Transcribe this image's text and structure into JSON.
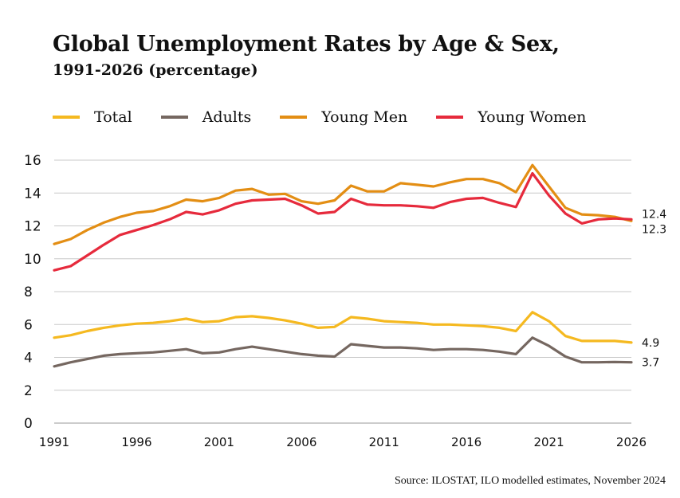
{
  "chart_data": {
    "type": "line",
    "title": "Global Unemployment Rates by Age & Sex,",
    "subtitle": "1991-2026 (percentage)",
    "xlabel": "",
    "ylabel": "",
    "x": [
      1991,
      1992,
      1993,
      1994,
      1995,
      1996,
      1997,
      1998,
      1999,
      2000,
      2001,
      2002,
      2003,
      2004,
      2005,
      2006,
      2007,
      2008,
      2009,
      2010,
      2011,
      2012,
      2013,
      2014,
      2015,
      2016,
      2017,
      2018,
      2019,
      2020,
      2021,
      2022,
      2023,
      2024,
      2025,
      2026
    ],
    "xlim": [
      1991,
      2026
    ],
    "ylim": [
      0,
      16
    ],
    "xticks": [
      "1991",
      "1996",
      "2001",
      "2006",
      "2011",
      "2016",
      "2021",
      "2026"
    ],
    "yticks": [
      "0",
      "2",
      "4",
      "6",
      "8",
      "10",
      "12",
      "14",
      "16"
    ],
    "grid": "horizontal",
    "legend_position": "top",
    "series": [
      {
        "name": "Total",
        "color": "#F5B920",
        "end_label": "4.9",
        "values": [
          5.2,
          5.35,
          5.6,
          5.8,
          5.95,
          6.05,
          6.1,
          6.2,
          6.35,
          6.15,
          6.2,
          6.45,
          6.5,
          6.4,
          6.25,
          6.05,
          5.8,
          5.85,
          6.45,
          6.35,
          6.2,
          6.15,
          6.1,
          6.0,
          6.0,
          5.95,
          5.9,
          5.8,
          5.6,
          6.75,
          6.2,
          5.3,
          5.0,
          5.0,
          5.0,
          4.9
        ]
      },
      {
        "name": "Adults",
        "color": "#756760",
        "end_label": "3.7",
        "values": [
          3.45,
          3.7,
          3.9,
          4.1,
          4.2,
          4.25,
          4.3,
          4.4,
          4.5,
          4.25,
          4.3,
          4.5,
          4.65,
          4.5,
          4.35,
          4.2,
          4.1,
          4.05,
          4.8,
          4.7,
          4.6,
          4.6,
          4.55,
          4.45,
          4.5,
          4.5,
          4.45,
          4.35,
          4.2,
          5.2,
          4.7,
          4.05,
          3.7,
          3.7,
          3.72,
          3.7
        ]
      },
      {
        "name": "Young Men",
        "color": "#E38E14",
        "end_label": "12.3",
        "values": [
          10.9,
          11.2,
          11.75,
          12.2,
          12.55,
          12.8,
          12.9,
          13.2,
          13.6,
          13.5,
          13.7,
          14.15,
          14.25,
          13.9,
          13.95,
          13.5,
          13.35,
          13.55,
          14.45,
          14.1,
          14.1,
          14.6,
          14.5,
          14.4,
          14.65,
          14.85,
          14.85,
          14.6,
          14.05,
          15.7,
          14.4,
          13.1,
          12.7,
          12.65,
          12.55,
          12.3
        ]
      },
      {
        "name": "Young Women",
        "color": "#E62A3C",
        "end_label": "12.4",
        "values": [
          9.3,
          9.55,
          10.2,
          10.85,
          11.45,
          11.75,
          12.05,
          12.4,
          12.85,
          12.7,
          12.95,
          13.35,
          13.55,
          13.6,
          13.65,
          13.25,
          12.75,
          12.85,
          13.65,
          13.3,
          13.25,
          13.25,
          13.2,
          13.1,
          13.45,
          13.65,
          13.7,
          13.4,
          13.15,
          15.2,
          13.85,
          12.75,
          12.15,
          12.4,
          12.45,
          12.4
        ]
      }
    ]
  },
  "source": "Source: ILOSTAT, ILO modelled estimates, November 2024"
}
